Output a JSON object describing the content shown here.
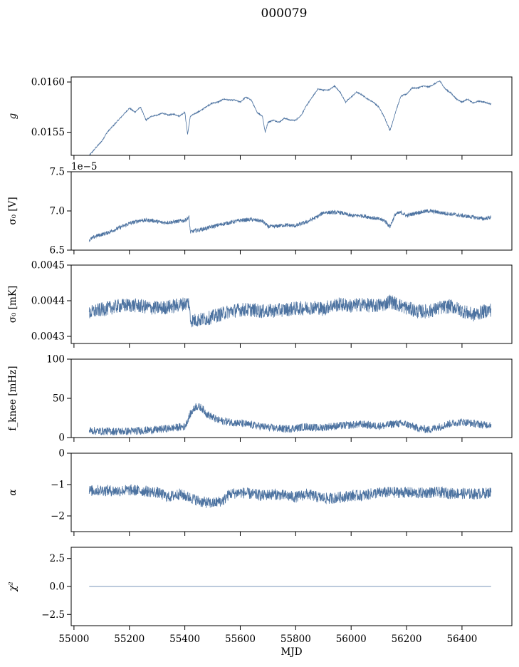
{
  "figure": {
    "title": "000079"
  },
  "chart_data": [
    {
      "type": "line",
      "ylabel": "g",
      "ylabel_is_math": true,
      "ylim": [
        0.01527,
        0.01605
      ],
      "yticks": [
        0.0155,
        0.016
      ],
      "yticklabels": [
        "0.0155",
        "0.0160"
      ],
      "xlim": [
        54990,
        56580
      ],
      "offset_text": "",
      "color": "#4c72a0",
      "noise": 6e-06,
      "series": [
        {
          "x": [
            55055,
            55065,
            55080,
            55100,
            55120,
            55140,
            55160,
            55180,
            55200,
            55220,
            55240,
            55260,
            55280,
            55300,
            55320,
            55340,
            55360,
            55380,
            55400,
            55410,
            55420,
            55440,
            55460,
            55480,
            55500,
            55520,
            55540,
            55560,
            55580,
            55600,
            55620,
            55640,
            55660,
            55680,
            55690,
            55700,
            55720,
            55740,
            55760,
            55780,
            55800,
            55820,
            55840,
            55860,
            55880,
            55900,
            55920,
            55940,
            55960,
            55980,
            56000,
            56020,
            56040,
            56060,
            56080,
            56100,
            56120,
            56140,
            56150,
            56160,
            56180,
            56200,
            56220,
            56240,
            56260,
            56280,
            56300,
            56320,
            56340,
            56360,
            56380,
            56400,
            56420,
            56440,
            56460,
            56480,
            56505
          ],
          "values": [
            0.01527,
            0.0153,
            0.01535,
            0.01541,
            0.0155,
            0.01556,
            0.01562,
            0.01568,
            0.01574,
            0.0157,
            0.01575,
            0.01562,
            0.01566,
            0.01567,
            0.01569,
            0.01567,
            0.01568,
            0.01566,
            0.0157,
            0.01548,
            0.01566,
            0.01569,
            0.01572,
            0.01576,
            0.01579,
            0.0158,
            0.01583,
            0.01582,
            0.01582,
            0.0158,
            0.01585,
            0.01582,
            0.0157,
            0.01566,
            0.0155,
            0.0156,
            0.01562,
            0.0156,
            0.01564,
            0.01562,
            0.01562,
            0.01567,
            0.01577,
            0.01585,
            0.01593,
            0.01592,
            0.01592,
            0.01596,
            0.0159,
            0.0158,
            0.01585,
            0.0159,
            0.01587,
            0.01583,
            0.0158,
            0.01575,
            0.01565,
            0.01552,
            0.0156,
            0.0157,
            0.01586,
            0.01588,
            0.01594,
            0.01594,
            0.01596,
            0.01595,
            0.01598,
            0.01601,
            0.01593,
            0.01589,
            0.01583,
            0.0158,
            0.01583,
            0.01579,
            0.01581,
            0.0158,
            0.01578
          ]
        }
      ]
    },
    {
      "type": "line",
      "ylabel": "σ₀ [V]",
      "ylim": [
        6.5,
        7.5
      ],
      "yticks": [
        6.5,
        7.0,
        7.5
      ],
      "yticklabels": [
        "6.5",
        "7.0",
        "7.5"
      ],
      "xlim": [
        54990,
        56580
      ],
      "offset_text": "1e−5",
      "color": "#4c72a0",
      "noise": 0.025,
      "series": [
        {
          "x": [
            55055,
            55080,
            55120,
            55160,
            55200,
            55240,
            55280,
            55320,
            55360,
            55400,
            55415,
            55420,
            55440,
            55480,
            55520,
            55560,
            55600,
            55640,
            55680,
            55700,
            55720,
            55760,
            55800,
            55840,
            55880,
            55900,
            55920,
            55960,
            56000,
            56040,
            56080,
            56120,
            56140,
            56160,
            56180,
            56200,
            56240,
            56280,
            56320,
            56360,
            56400,
            56440,
            56480,
            56505
          ],
          "values": [
            6.63,
            6.68,
            6.72,
            6.78,
            6.84,
            6.88,
            6.88,
            6.85,
            6.86,
            6.88,
            6.92,
            6.73,
            6.75,
            6.78,
            6.82,
            6.85,
            6.88,
            6.89,
            6.87,
            6.8,
            6.8,
            6.82,
            6.81,
            6.86,
            6.93,
            6.98,
            6.98,
            6.98,
            6.94,
            6.94,
            6.91,
            6.88,
            6.8,
            6.96,
            6.98,
            6.94,
            6.98,
            7.0,
            6.98,
            6.96,
            6.94,
            6.92,
            6.9,
            6.92
          ]
        }
      ]
    },
    {
      "type": "line",
      "ylabel": "σ₀ [mK]",
      "ylim": [
        0.00428,
        0.0045
      ],
      "yticks": [
        0.0043,
        0.0044,
        0.0045
      ],
      "yticklabels": [
        "0.0043",
        "0.0044",
        "0.0045"
      ],
      "xlim": [
        54990,
        56580
      ],
      "offset_text": "",
      "color": "#4c72a0",
      "noise": 2e-05,
      "series": [
        {
          "x": [
            55055,
            55080,
            55120,
            55160,
            55200,
            55240,
            55280,
            55320,
            55360,
            55400,
            55415,
            55420,
            55440,
            55480,
            55520,
            55560,
            55600,
            55640,
            55680,
            55720,
            55760,
            55800,
            55840,
            55880,
            55900,
            55920,
            55960,
            56000,
            56040,
            56080,
            56120,
            56140,
            56160,
            56200,
            56240,
            56280,
            56320,
            56360,
            56400,
            56440,
            56480,
            56505
          ],
          "values": [
            0.004365,
            0.004372,
            0.004378,
            0.004385,
            0.004388,
            0.004385,
            0.00438,
            0.00438,
            0.004385,
            0.004392,
            0.004395,
            0.004345,
            0.004345,
            0.00435,
            0.00436,
            0.00437,
            0.004375,
            0.004375,
            0.00437,
            0.004372,
            0.004375,
            0.004378,
            0.00438,
            0.004382,
            0.004375,
            0.004385,
            0.00439,
            0.004385,
            0.00439,
            0.004385,
            0.00439,
            0.0044,
            0.004392,
            0.00438,
            0.00437,
            0.00437,
            0.00438,
            0.004385,
            0.004372,
            0.00436,
            0.00437,
            0.004375
          ]
        }
      ]
    },
    {
      "type": "line",
      "ylabel": "f_knee [mHz]",
      "ylim": [
        0,
        100
      ],
      "yticks": [
        0,
        50,
        100
      ],
      "yticklabels": [
        "0",
        "50",
        "100"
      ],
      "xlim": [
        54990,
        56580
      ],
      "offset_text": "",
      "color": "#4c72a0",
      "noise": 5,
      "series": [
        {
          "x": [
            55055,
            55100,
            55150,
            55200,
            55250,
            55300,
            55350,
            55400,
            55420,
            55440,
            55460,
            55480,
            55500,
            55520,
            55560,
            55600,
            55640,
            55680,
            55720,
            55760,
            55800,
            55840,
            55880,
            55920,
            55960,
            56000,
            56040,
            56080,
            56120,
            56160,
            56200,
            56240,
            56280,
            56320,
            56360,
            56400,
            56440,
            56480,
            56505
          ],
          "values": [
            9,
            8,
            8,
            8,
            9,
            10,
            12,
            14,
            30,
            40,
            38,
            30,
            26,
            22,
            20,
            18,
            16,
            14,
            12,
            11,
            12,
            14,
            12,
            14,
            15,
            16,
            17,
            15,
            15,
            18,
            17,
            12,
            10,
            14,
            18,
            20,
            18,
            16,
            17
          ]
        }
      ]
    },
    {
      "type": "line",
      "ylabel": "α",
      "ylabel_is_math": true,
      "ylim": [
        -2.5,
        0
      ],
      "yticks": [
        -2,
        -1,
        0
      ],
      "yticklabels": [
        "−2",
        "−1",
        "0"
      ],
      "xlim": [
        54990,
        56580
      ],
      "offset_text": "",
      "color": "#4c72a0",
      "noise": 0.18,
      "series": [
        {
          "x": [
            55055,
            55100,
            55150,
            55200,
            55250,
            55300,
            55340,
            55380,
            55420,
            55460,
            55500,
            55540,
            55560,
            55600,
            55640,
            55680,
            55720,
            55760,
            55800,
            55840,
            55880,
            55920,
            55960,
            56000,
            56040,
            56080,
            56120,
            56160,
            56200,
            56240,
            56280,
            56320,
            56360,
            56400,
            56440,
            56480,
            56505
          ],
          "values": [
            -1.2,
            -1.18,
            -1.2,
            -1.18,
            -1.2,
            -1.25,
            -1.4,
            -1.3,
            -1.42,
            -1.55,
            -1.6,
            -1.5,
            -1.3,
            -1.25,
            -1.3,
            -1.35,
            -1.3,
            -1.35,
            -1.4,
            -1.3,
            -1.4,
            -1.45,
            -1.4,
            -1.35,
            -1.35,
            -1.28,
            -1.25,
            -1.25,
            -1.25,
            -1.28,
            -1.25,
            -1.25,
            -1.28,
            -1.28,
            -1.3,
            -1.28,
            -1.25
          ]
        }
      ]
    },
    {
      "type": "line",
      "ylabel": "χ²",
      "ylabel_is_math": true,
      "ylim": [
        -3.5,
        3.5
      ],
      "yticks": [
        -2.5,
        0,
        2.5
      ],
      "yticklabels": [
        "−2.5",
        "0.0",
        "2.5"
      ],
      "xlim": [
        54990,
        56580
      ],
      "offset_text": "",
      "color": "#4c72a0",
      "noise": 0,
      "series": [
        {
          "x": [
            55055,
            56505
          ],
          "values": [
            0,
            0
          ]
        }
      ]
    }
  ],
  "xaxis": {
    "ticks": [
      55000,
      55200,
      55400,
      55600,
      55800,
      56000,
      56200,
      56400
    ],
    "ticklabels": [
      "55000",
      "55200",
      "55400",
      "55600",
      "55800",
      "56000",
      "56200",
      "56400"
    ],
    "label": "MJD"
  }
}
